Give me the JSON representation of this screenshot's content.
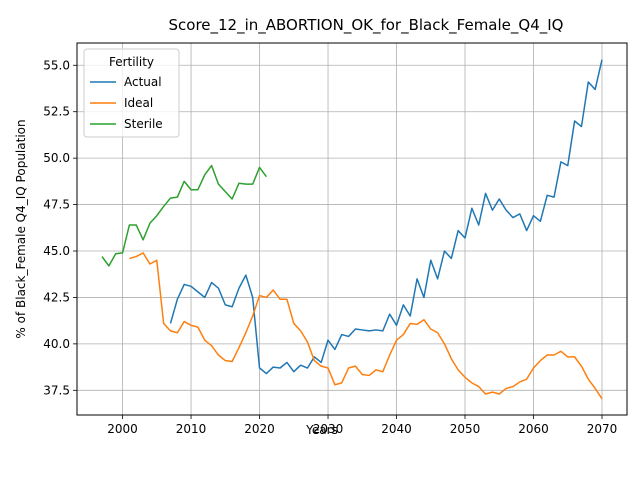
{
  "chart_data": {
    "type": "line",
    "title": "Score_12_in_ABORTION_OK_for_Black_Female_Q4_IQ",
    "xlabel": "Years",
    "ylabel": "% of Black_Female Q4_IQ Population",
    "xlim": [
      1993.35,
      2073.65
    ],
    "ylim": [
      36.17,
      56.2
    ],
    "xticks": [
      2000,
      2010,
      2020,
      2030,
      2040,
      2050,
      2060,
      2070
    ],
    "yticks": [
      37.5,
      40.0,
      42.5,
      45.0,
      47.5,
      50.0,
      52.5,
      55.0
    ],
    "xtick_labels": [
      "2000",
      "2010",
      "2020",
      "2030",
      "2040",
      "2050",
      "2060",
      "2070"
    ],
    "ytick_labels": [
      "37.5",
      "40.0",
      "42.5",
      "45.0",
      "47.5",
      "50.0",
      "52.5",
      "55.0"
    ],
    "grid": true,
    "legend": {
      "title": "Fertility",
      "placement": "top-left"
    },
    "series": [
      {
        "name": "Actual",
        "color": "#1f77b4",
        "x": [
          2007,
          2008,
          2009,
          2010,
          2011,
          2012,
          2013,
          2014,
          2015,
          2016,
          2017,
          2018,
          2019,
          2020,
          2021,
          2022,
          2023,
          2024,
          2025,
          2026,
          2027,
          2028,
          2029,
          2030,
          2031,
          2032,
          2033,
          2034,
          2035,
          2036,
          2037,
          2038,
          2039,
          2040,
          2041,
          2042,
          2043,
          2044,
          2045,
          2046,
          2047,
          2048,
          2049,
          2050,
          2051,
          2052,
          2053,
          2054,
          2055,
          2056,
          2057,
          2058,
          2059,
          2060,
          2061,
          2062,
          2063,
          2064,
          2065,
          2066,
          2067,
          2068,
          2069,
          2070
        ],
        "y": [
          41.1,
          42.4,
          43.2,
          43.1,
          42.8,
          42.5,
          43.3,
          43.0,
          42.1,
          42.0,
          43.0,
          43.7,
          42.5,
          38.7,
          38.4,
          38.75,
          38.7,
          39.0,
          38.5,
          38.85,
          38.7,
          39.3,
          39.0,
          40.2,
          39.7,
          40.5,
          40.4,
          40.8,
          40.75,
          40.7,
          40.75,
          40.7,
          41.6,
          41.0,
          42.1,
          41.5,
          43.5,
          42.5,
          44.5,
          43.5,
          45.0,
          44.6,
          46.1,
          45.7,
          47.3,
          46.4,
          48.1,
          47.2,
          47.8,
          47.2,
          46.8,
          47.0,
          46.1,
          46.9,
          46.6,
          48.0,
          47.9,
          49.8,
          49.6,
          52.0,
          51.7,
          54.1,
          53.7,
          55.3
        ]
      },
      {
        "name": "Ideal",
        "color": "#ff7f0e",
        "x": [
          2001,
          2002,
          2003,
          2004,
          2005,
          2006,
          2007,
          2008,
          2009,
          2010,
          2011,
          2012,
          2013,
          2014,
          2015,
          2016,
          2017,
          2018,
          2019,
          2020,
          2021,
          2022,
          2023,
          2024,
          2025,
          2026,
          2027,
          2028,
          2029,
          2030,
          2031,
          2032,
          2033,
          2034,
          2035,
          2036,
          2037,
          2038,
          2039,
          2040,
          2041,
          2042,
          2043,
          2044,
          2045,
          2046,
          2047,
          2048,
          2049,
          2050,
          2051,
          2052,
          2053,
          2054,
          2055,
          2056,
          2057,
          2058,
          2059,
          2060,
          2061,
          2062,
          2063,
          2064,
          2065,
          2066,
          2067,
          2068,
          2069,
          2070
        ],
        "y": [
          44.6,
          44.7,
          44.9,
          44.3,
          44.5,
          41.1,
          40.7,
          40.6,
          41.2,
          41.0,
          40.9,
          40.2,
          39.9,
          39.4,
          39.1,
          39.05,
          39.8,
          40.6,
          41.5,
          42.6,
          42.5,
          42.9,
          42.4,
          42.4,
          41.1,
          40.7,
          40.1,
          39.1,
          38.8,
          38.7,
          37.8,
          37.9,
          38.7,
          38.8,
          38.35,
          38.3,
          38.6,
          38.5,
          39.4,
          40.2,
          40.5,
          41.1,
          41.05,
          41.3,
          40.8,
          40.6,
          40.0,
          39.2,
          38.6,
          38.2,
          37.9,
          37.7,
          37.3,
          37.4,
          37.3,
          37.6,
          37.7,
          37.95,
          38.1,
          38.7,
          39.1,
          39.4,
          39.4,
          39.6,
          39.3,
          39.3,
          38.8,
          38.1,
          37.6,
          37.05
        ]
      },
      {
        "name": "Sterile",
        "color": "#2ca02c",
        "x": [
          1997,
          1998,
          1999,
          2000,
          2001,
          2002,
          2003,
          2004,
          2005,
          2006,
          2007,
          2008,
          2009,
          2010,
          2011,
          2012,
          2013,
          2014,
          2015,
          2016,
          2017,
          2018,
          2019,
          2020,
          2021
        ],
        "y": [
          44.7,
          44.2,
          44.85,
          44.9,
          46.4,
          46.4,
          45.6,
          46.5,
          46.9,
          47.4,
          47.85,
          47.9,
          48.75,
          48.3,
          48.3,
          49.1,
          49.6,
          48.6,
          48.2,
          47.8,
          48.65,
          48.6,
          48.6,
          49.5,
          49.0
        ]
      }
    ]
  }
}
